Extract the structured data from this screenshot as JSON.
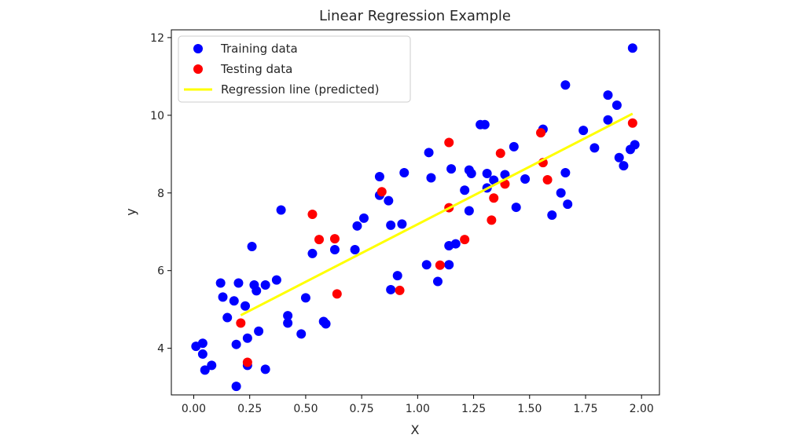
{
  "chart_data": {
    "type": "scatter",
    "title": "Linear Regression Example",
    "xlabel": "X",
    "ylabel": "y",
    "xlim": [
      -0.1,
      2.08
    ],
    "ylim": [
      2.8,
      12.2
    ],
    "xticks": [
      "0.00",
      "0.25",
      "0.50",
      "0.75",
      "1.00",
      "1.25",
      "1.50",
      "1.75",
      "2.00"
    ],
    "yticks": [
      "4",
      "6",
      "8",
      "10",
      "12"
    ],
    "legend": {
      "position": "top-left"
    },
    "grid": false,
    "series": [
      {
        "name": "Training data",
        "kind": "scatter",
        "color": "#0000ff",
        "points": [
          [
            0.01,
            4.05
          ],
          [
            0.04,
            4.13
          ],
          [
            0.04,
            3.85
          ],
          [
            0.05,
            3.44
          ],
          [
            0.08,
            3.56
          ],
          [
            0.12,
            5.68
          ],
          [
            0.13,
            5.32
          ],
          [
            0.15,
            4.79
          ],
          [
            0.18,
            5.22
          ],
          [
            0.2,
            5.68
          ],
          [
            0.19,
            4.1
          ],
          [
            0.19,
            3.02
          ],
          [
            0.23,
            5.09
          ],
          [
            0.24,
            3.56
          ],
          [
            0.24,
            4.26
          ],
          [
            0.26,
            6.62
          ],
          [
            0.27,
            5.63
          ],
          [
            0.28,
            5.48
          ],
          [
            0.29,
            4.44
          ],
          [
            0.32,
            5.63
          ],
          [
            0.32,
            3.46
          ],
          [
            0.37,
            5.76
          ],
          [
            0.39,
            7.56
          ],
          [
            0.42,
            4.65
          ],
          [
            0.42,
            4.84
          ],
          [
            0.48,
            4.37
          ],
          [
            0.5,
            5.3
          ],
          [
            0.53,
            6.44
          ],
          [
            0.58,
            4.69
          ],
          [
            0.59,
            4.63
          ],
          [
            0.63,
            6.54
          ],
          [
            0.72,
            6.54
          ],
          [
            0.73,
            7.15
          ],
          [
            0.76,
            7.35
          ],
          [
            0.83,
            8.42
          ],
          [
            0.83,
            7.94
          ],
          [
            0.87,
            7.8
          ],
          [
            0.88,
            7.17
          ],
          [
            0.88,
            5.51
          ],
          [
            0.91,
            5.87
          ],
          [
            0.93,
            7.2
          ],
          [
            0.94,
            8.52
          ],
          [
            1.04,
            6.15
          ],
          [
            1.05,
            9.04
          ],
          [
            1.06,
            8.39
          ],
          [
            1.09,
            5.72
          ],
          [
            1.14,
            6.15
          ],
          [
            1.14,
            6.64
          ],
          [
            1.15,
            8.62
          ],
          [
            1.17,
            6.69
          ],
          [
            1.21,
            8.07
          ],
          [
            1.23,
            8.59
          ],
          [
            1.23,
            7.54
          ],
          [
            1.24,
            8.5
          ],
          [
            1.28,
            9.76
          ],
          [
            1.3,
            9.76
          ],
          [
            1.31,
            8.5
          ],
          [
            1.31,
            8.13
          ],
          [
            1.34,
            8.33
          ],
          [
            1.39,
            8.47
          ],
          [
            1.43,
            9.19
          ],
          [
            1.44,
            7.63
          ],
          [
            1.48,
            8.36
          ],
          [
            1.56,
            9.64
          ],
          [
            1.6,
            7.43
          ],
          [
            1.64,
            8.0
          ],
          [
            1.66,
            8.52
          ],
          [
            1.66,
            10.78
          ],
          [
            1.67,
            7.71
          ],
          [
            1.74,
            9.61
          ],
          [
            1.79,
            9.16
          ],
          [
            1.85,
            10.52
          ],
          [
            1.85,
            9.88
          ],
          [
            1.89,
            10.26
          ],
          [
            1.9,
            8.91
          ],
          [
            1.92,
            8.7
          ],
          [
            1.95,
            9.12
          ],
          [
            1.96,
            11.73
          ],
          [
            1.97,
            9.24
          ]
        ]
      },
      {
        "name": "Testing data",
        "kind": "scatter",
        "color": "#ff0000",
        "points": [
          [
            0.21,
            4.65
          ],
          [
            0.24,
            3.64
          ],
          [
            0.53,
            7.45
          ],
          [
            0.56,
            6.8
          ],
          [
            0.63,
            6.82
          ],
          [
            0.64,
            5.4
          ],
          [
            0.84,
            8.03
          ],
          [
            0.92,
            5.49
          ],
          [
            1.1,
            6.14
          ],
          [
            1.14,
            7.62
          ],
          [
            1.14,
            9.3
          ],
          [
            1.21,
            6.8
          ],
          [
            1.33,
            7.3
          ],
          [
            1.34,
            7.87
          ],
          [
            1.37,
            9.02
          ],
          [
            1.39,
            8.23
          ],
          [
            1.55,
            9.55
          ],
          [
            1.56,
            8.78
          ],
          [
            1.58,
            8.34
          ],
          [
            1.96,
            9.8
          ]
        ]
      },
      {
        "name": "Regression line (predicted)",
        "kind": "line",
        "color": "#ffff00",
        "points": [
          [
            0.21,
            4.85
          ],
          [
            1.96,
            10.04
          ]
        ]
      }
    ]
  }
}
